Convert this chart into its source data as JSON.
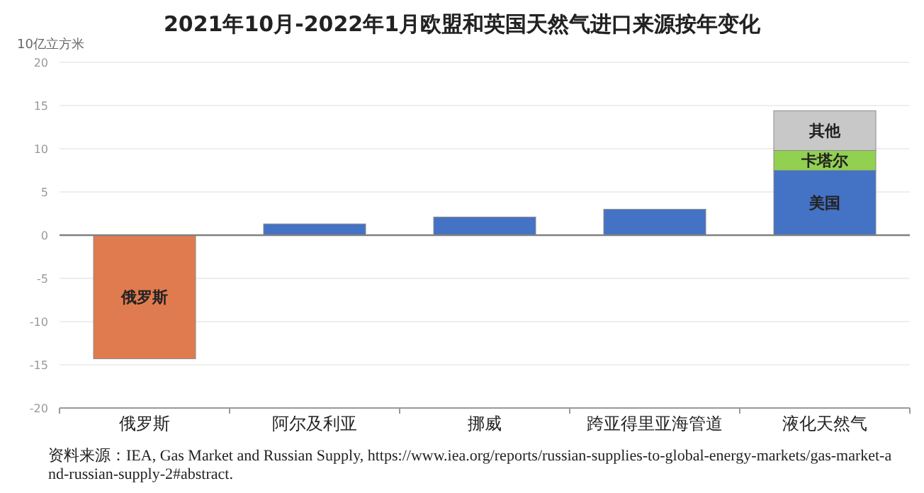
{
  "chart_data": {
    "type": "bar",
    "stacked": true,
    "title": "2021年10月-2022年1月欧盟和英国天然气进口来源按年变化",
    "ylabel": "10亿立方米",
    "categories": [
      "俄罗斯",
      "阿尔及利亚",
      "挪威",
      "跨亚得里亚海管道",
      "液化天然气"
    ],
    "series": [
      {
        "name": "俄罗斯",
        "color": "#e07b4f",
        "values": [
          -14.3,
          null,
          null,
          null,
          null
        ]
      },
      {
        "color": "#4472c4",
        "values": [
          null,
          1.3,
          2.1,
          3.0,
          null
        ]
      },
      {
        "name": "美国",
        "color": "#4472c4",
        "values": [
          null,
          null,
          null,
          null,
          7.5
        ]
      },
      {
        "name": "卡塔尔",
        "color": "#92d050",
        "values": [
          null,
          null,
          null,
          null,
          2.3
        ]
      },
      {
        "name": "其他",
        "color": "#c8c8c8",
        "values": [
          null,
          null,
          null,
          null,
          4.6
        ]
      }
    ],
    "ylim": [
      -20,
      20
    ],
    "yticks": [
      -20,
      -15,
      -10,
      -5,
      0,
      5,
      10,
      15,
      20
    ],
    "grid": "y",
    "ref_lines": [
      {
        "axis": "y",
        "value": 0,
        "color": "#808080"
      }
    ],
    "annotations": [
      "资料来源：IEA, Gas Market and Russian Supply, https://www.iea.org/reports/russian-supplies-to-global-energy-markets/gas-market-and-russian-supply-2#abstract."
    ]
  }
}
